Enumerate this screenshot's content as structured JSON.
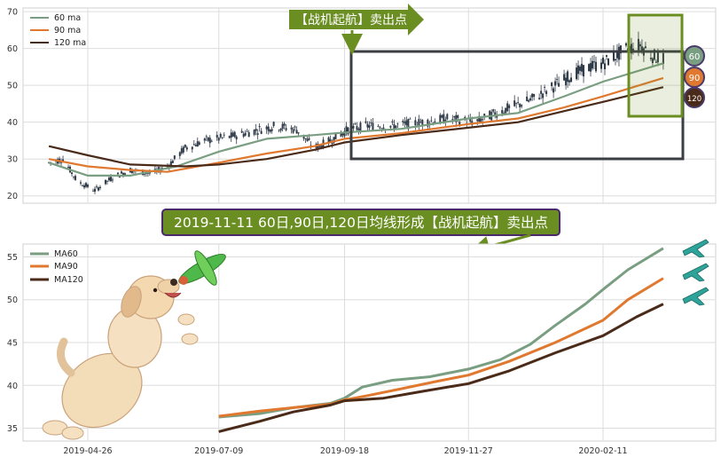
{
  "chart_data": [
    {
      "type": "line",
      "chart_kind": "candlestick price with moving averages",
      "ylim": [
        18,
        71
      ],
      "y_ticks": [
        20,
        30,
        40,
        50,
        60,
        70
      ],
      "x_range": [
        "2019-04-04",
        "2020-03-16"
      ],
      "grid": true,
      "legend_position": "top-left",
      "legend": [
        "60 ma",
        "90 ma",
        "120 ma"
      ],
      "colors": {
        "ma60": "#7a9e82",
        "ma90": "#e0792f",
        "ma120": "#4a2a18",
        "candle": "#2f3a48"
      },
      "price_path": [
        [
          "2019-04-04",
          29
        ],
        [
          "2019-04-12",
          30
        ],
        [
          "2019-04-20",
          24
        ],
        [
          "2019-04-30",
          21.5
        ],
        [
          "2019-05-10",
          25
        ],
        [
          "2019-05-20",
          27
        ],
        [
          "2019-06-01",
          26
        ],
        [
          "2019-06-10",
          28
        ],
        [
          "2019-06-20",
          33
        ],
        [
          "2019-07-01",
          35
        ],
        [
          "2019-07-15",
          36
        ],
        [
          "2019-08-01",
          38
        ],
        [
          "2019-08-10",
          39
        ],
        [
          "2019-08-22",
          38
        ],
        [
          "2019-09-01",
          33
        ],
        [
          "2019-09-10",
          35
        ],
        [
          "2019-09-20",
          38
        ],
        [
          "2019-10-01",
          39
        ],
        [
          "2019-10-15",
          39
        ],
        [
          "2019-11-01",
          40
        ],
        [
          "2019-11-15",
          41
        ],
        [
          "2019-12-01",
          40
        ],
        [
          "2019-12-15",
          43
        ],
        [
          "2020-01-01",
          46
        ],
        [
          "2020-01-15",
          50
        ],
        [
          "2020-01-25",
          53
        ],
        [
          "2020-02-04",
          55
        ],
        [
          "2020-02-11",
          56
        ],
        [
          "2020-02-18",
          58
        ],
        [
          "2020-02-25",
          60
        ],
        [
          "2020-03-03",
          61
        ],
        [
          "2020-03-10",
          58
        ],
        [
          "2020-03-16",
          57
        ]
      ],
      "series": [
        {
          "name": "60 ma",
          "points": [
            [
              "2019-04-04",
              29
            ],
            [
              "2019-04-26",
              25.5
            ],
            [
              "2019-05-20",
              25.5
            ],
            [
              "2019-06-15",
              28
            ],
            [
              "2019-07-09",
              32
            ],
            [
              "2019-08-05",
              35.5
            ],
            [
              "2019-09-01",
              36.5
            ],
            [
              "2019-09-18",
              37.2
            ],
            [
              "2019-10-20",
              38.2
            ],
            [
              "2019-11-27",
              41
            ],
            [
              "2019-12-25",
              42.5
            ],
            [
              "2020-01-20",
              47
            ],
            [
              "2020-02-11",
              51
            ],
            [
              "2020-03-16",
              56
            ]
          ]
        },
        {
          "name": "90 ma",
          "points": [
            [
              "2019-04-04",
              30
            ],
            [
              "2019-04-26",
              28
            ],
            [
              "2019-05-20",
              27
            ],
            [
              "2019-06-10",
              26.5
            ],
            [
              "2019-07-09",
              29
            ],
            [
              "2019-08-05",
              31.5
            ],
            [
              "2019-09-01",
              33.5
            ],
            [
              "2019-09-18",
              35.5
            ],
            [
              "2019-10-20",
              37
            ],
            [
              "2019-11-27",
              39.5
            ],
            [
              "2019-12-25",
              41
            ],
            [
              "2020-01-20",
              44
            ],
            [
              "2020-02-11",
              47
            ],
            [
              "2020-03-16",
              52
            ]
          ]
        },
        {
          "name": "120 ma",
          "points": [
            [
              "2019-04-04",
              33.5
            ],
            [
              "2019-04-26",
              31
            ],
            [
              "2019-05-20",
              28.5
            ],
            [
              "2019-06-20",
              28
            ],
            [
              "2019-07-09",
              28.5
            ],
            [
              "2019-08-05",
              30
            ],
            [
              "2019-09-01",
              32.5
            ],
            [
              "2019-09-18",
              34.5
            ],
            [
              "2019-10-20",
              36.5
            ],
            [
              "2019-11-27",
              38.5
            ],
            [
              "2019-12-25",
              40
            ],
            [
              "2020-01-20",
              43
            ],
            [
              "2020-02-11",
              45.5
            ],
            [
              "2020-03-16",
              49.5
            ]
          ]
        }
      ],
      "end_badges": [
        "60",
        "90",
        "120"
      ],
      "arrow_label": "【战机起航】卖出点"
    },
    {
      "type": "line",
      "ylim": [
        33.5,
        56.5
      ],
      "y_ticks": [
        35,
        40,
        45,
        50,
        55
      ],
      "x_ticks": [
        "2019-04-26",
        "2019-07-09",
        "2019-09-18",
        "2019-11-27",
        "2020-02-11"
      ],
      "x_range": [
        "2019-04-04",
        "2020-03-16"
      ],
      "grid": true,
      "legend_position": "top-left",
      "legend": [
        "MA60",
        "MA90",
        "MA120"
      ],
      "title_banner": "2019-11-11 60日,90日,120日均线形成【战机起航】卖出点",
      "series": [
        {
          "name": "MA60",
          "points": [
            [
              "2019-07-09",
              36.3
            ],
            [
              "2019-08-01",
              36.7
            ],
            [
              "2019-08-20",
              37.4
            ],
            [
              "2019-09-10",
              37.9
            ],
            [
              "2019-09-18",
              38.5
            ],
            [
              "2019-09-28",
              39.8
            ],
            [
              "2019-10-15",
              40.6
            ],
            [
              "2019-11-05",
              41
            ],
            [
              "2019-11-27",
              41.9
            ],
            [
              "2019-12-15",
              43
            ],
            [
              "2020-01-01",
              44.8
            ],
            [
              "2020-01-15",
              47
            ],
            [
              "2020-02-01",
              49.5
            ],
            [
              "2020-02-11",
              51.2
            ],
            [
              "2020-02-25",
              53.5
            ],
            [
              "2020-03-16",
              56
            ]
          ]
        },
        {
          "name": "MA90",
          "points": [
            [
              "2019-07-09",
              36.4
            ],
            [
              "2019-08-01",
              37
            ],
            [
              "2019-08-20",
              37.4
            ],
            [
              "2019-09-10",
              37.8
            ],
            [
              "2019-09-18",
              38.3
            ],
            [
              "2019-10-01",
              38.8
            ],
            [
              "2019-10-20",
              39.6
            ],
            [
              "2019-11-10",
              40.5
            ],
            [
              "2019-11-27",
              41.2
            ],
            [
              "2019-12-20",
              42.8
            ],
            [
              "2020-01-15",
              45
            ],
            [
              "2020-02-11",
              47.6
            ],
            [
              "2020-02-25",
              50
            ],
            [
              "2020-03-16",
              52.5
            ]
          ]
        },
        {
          "name": "MA120",
          "points": [
            [
              "2019-07-09",
              34.6
            ],
            [
              "2019-08-01",
              35.8
            ],
            [
              "2019-08-20",
              36.9
            ],
            [
              "2019-09-10",
              37.7
            ],
            [
              "2019-09-18",
              38.2
            ],
            [
              "2019-10-10",
              38.5
            ],
            [
              "2019-11-01",
              39.3
            ],
            [
              "2019-11-27",
              40.2
            ],
            [
              "2019-12-20",
              41.7
            ],
            [
              "2020-01-15",
              43.8
            ],
            [
              "2020-02-11",
              45.8
            ],
            [
              "2020-03-01",
              48
            ],
            [
              "2020-03-16",
              49.5
            ]
          ]
        }
      ]
    }
  ]
}
